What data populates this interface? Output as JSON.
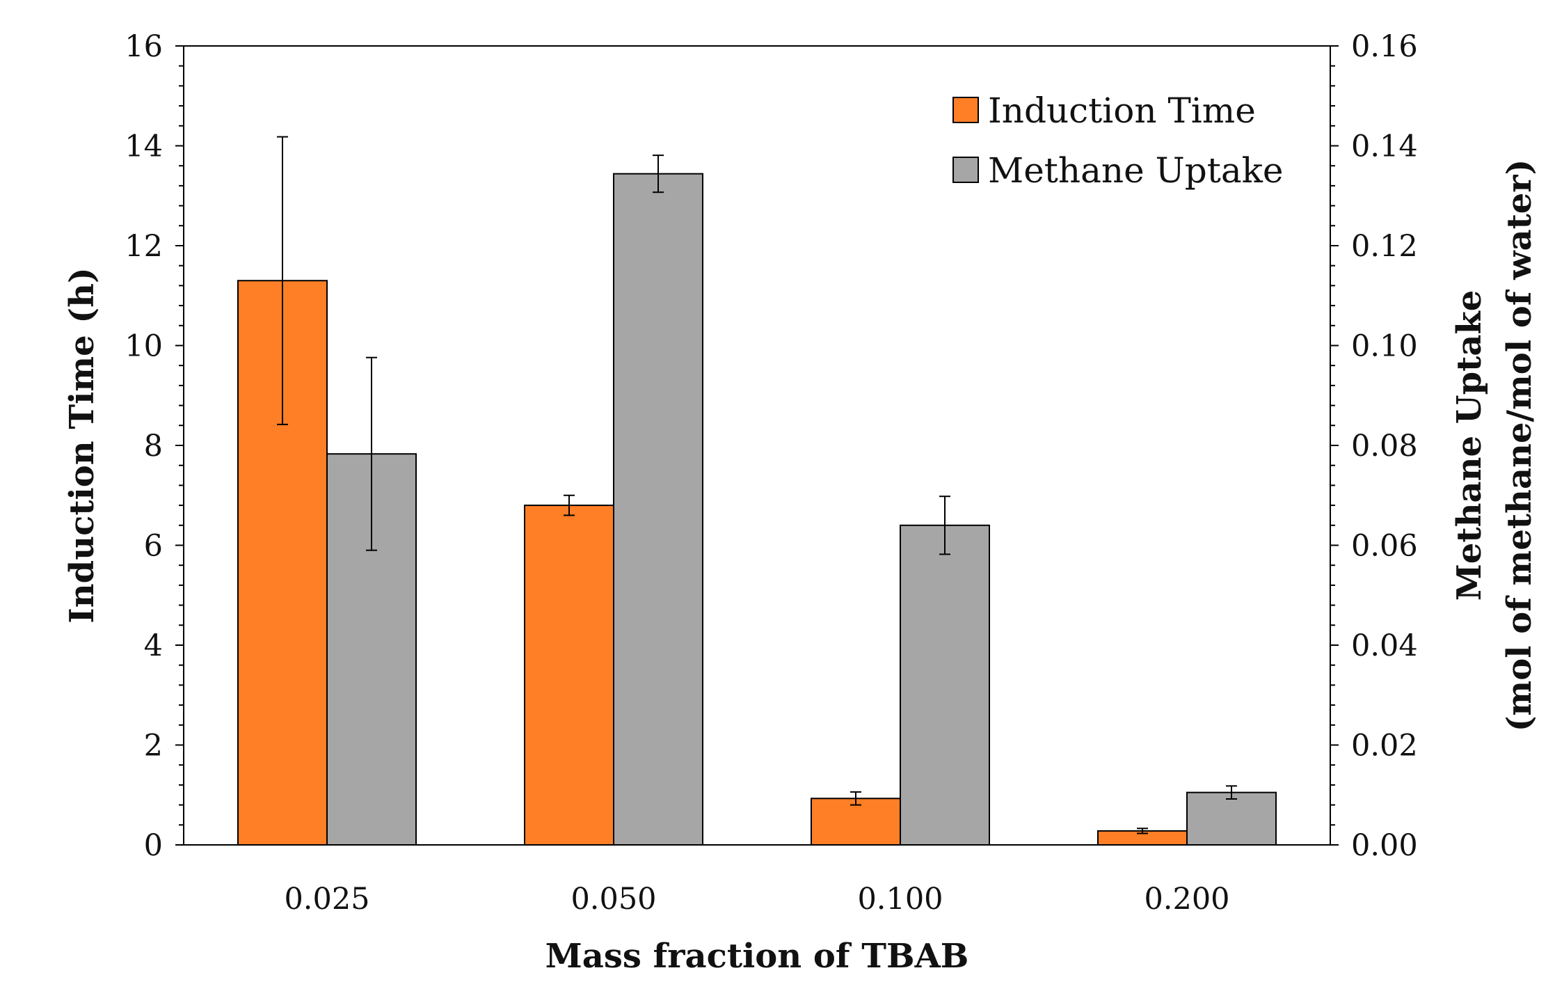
{
  "chart_data": {
    "type": "bar",
    "title": "",
    "xlabel": "Mass fraction of TBAB",
    "ylabel": "Induction Time (h)",
    "y2label_line1": "Methane Uptake",
    "y2label_line2": "(mol of methane/mol of water)",
    "categories": [
      "0.025",
      "0.050",
      "0.100",
      "0.200"
    ],
    "ylim": [
      0,
      16
    ],
    "y2lim": [
      0,
      0.16
    ],
    "yticks": [
      "0",
      "2",
      "4",
      "6",
      "8",
      "10",
      "12",
      "14",
      "16"
    ],
    "y2ticks": [
      "0.00",
      "0.02",
      "0.04",
      "0.06",
      "0.08",
      "0.10",
      "0.12",
      "0.14",
      "0.16"
    ],
    "legend_position": "top-right",
    "series": [
      {
        "name": "Induction Time",
        "axis": "left",
        "color": "#FF7F27",
        "values": [
          11.3,
          6.8,
          0.93,
          0.28
        ],
        "errors": [
          2.88,
          0.2,
          0.13,
          0.05
        ]
      },
      {
        "name": "Methane Uptake",
        "axis": "right",
        "color": "#A6A6A6",
        "values": [
          0.0783,
          0.1344,
          0.064,
          0.0105
        ],
        "errors": [
          0.0193,
          0.0037,
          0.0058,
          0.0013
        ]
      }
    ]
  }
}
